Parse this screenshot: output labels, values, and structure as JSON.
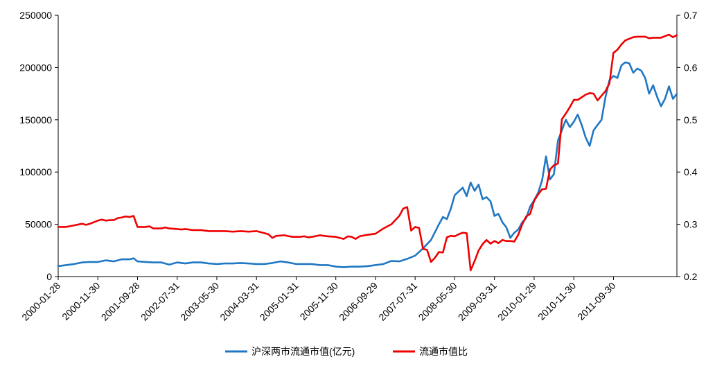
{
  "chart_data": {
    "type": "line",
    "title": "",
    "xlabel": "",
    "ylabel": "",
    "grid": false,
    "legend_position": "bottom",
    "x_tick_labels": [
      "2000-01-28",
      "2000-11-30",
      "2001-09-28",
      "2002-07-31",
      "2003-05-30",
      "2004-03-31",
      "2005-01-31",
      "2005-11-30",
      "2006-09-29",
      "2007-07-31",
      "2008-05-30",
      "2009-03-31",
      "2010-01-29",
      "2010-11-30",
      "2011-09-30"
    ],
    "y_left": {
      "min": 0,
      "max": 250000,
      "ticks": [
        0,
        50000,
        100000,
        150000,
        200000,
        250000
      ]
    },
    "y_right": {
      "min": 0.2,
      "max": 0.7,
      "ticks": [
        "0.2",
        "0.3",
        "0.4",
        "0.5",
        "0.6",
        "0.7"
      ]
    },
    "x_range_months": [
      0,
      143
    ],
    "series": [
      {
        "name": "沪深两市流通市值(亿元)",
        "axis": "left",
        "color": "#1f77c4",
        "points": [
          [
            0,
            10000
          ],
          [
            2,
            11000
          ],
          [
            4,
            12000
          ],
          [
            6,
            13500
          ],
          [
            8,
            14000
          ],
          [
            10,
            14000
          ],
          [
            12,
            15500
          ],
          [
            14,
            14500
          ],
          [
            16,
            16500
          ],
          [
            18,
            16500
          ],
          [
            19,
            17500
          ],
          [
            20,
            14500
          ],
          [
            22,
            14000
          ],
          [
            24,
            13500
          ],
          [
            26,
            13500
          ],
          [
            28,
            11500
          ],
          [
            30,
            13500
          ],
          [
            32,
            12500
          ],
          [
            34,
            13500
          ],
          [
            36,
            13500
          ],
          [
            38,
            12500
          ],
          [
            40,
            12000
          ],
          [
            42,
            12500
          ],
          [
            44,
            12500
          ],
          [
            46,
            13000
          ],
          [
            48,
            12500
          ],
          [
            50,
            12000
          ],
          [
            52,
            12000
          ],
          [
            54,
            13000
          ],
          [
            56,
            14500
          ],
          [
            58,
            13500
          ],
          [
            60,
            12000
          ],
          [
            62,
            12000
          ],
          [
            64,
            12000
          ],
          [
            66,
            11000
          ],
          [
            68,
            11000
          ],
          [
            70,
            9500
          ],
          [
            72,
            9000
          ],
          [
            74,
            9500
          ],
          [
            76,
            9500
          ],
          [
            78,
            10000
          ],
          [
            80,
            11000
          ],
          [
            82,
            12000
          ],
          [
            84,
            15000
          ],
          [
            86,
            14500
          ],
          [
            88,
            17000
          ],
          [
            90,
            20000
          ],
          [
            92,
            27000
          ],
          [
            94,
            35000
          ],
          [
            96,
            50000
          ],
          [
            97,
            57000
          ],
          [
            98,
            55000
          ],
          [
            99,
            65000
          ],
          [
            100,
            78000
          ],
          [
            102,
            85000
          ],
          [
            103,
            77000
          ],
          [
            104,
            90000
          ],
          [
            105,
            82000
          ],
          [
            106,
            88000
          ],
          [
            107,
            74000
          ],
          [
            108,
            76000
          ],
          [
            109,
            72000
          ],
          [
            110,
            58000
          ],
          [
            111,
            60000
          ],
          [
            112,
            52000
          ],
          [
            113,
            47000
          ],
          [
            114,
            37000
          ],
          [
            115,
            42000
          ],
          [
            116,
            45000
          ],
          [
            117,
            52000
          ],
          [
            118,
            56000
          ],
          [
            119,
            67000
          ],
          [
            120,
            73000
          ],
          [
            121,
            80000
          ],
          [
            122,
            92000
          ],
          [
            123,
            115000
          ],
          [
            124,
            93000
          ],
          [
            125,
            98000
          ],
          [
            126,
            130000
          ],
          [
            128,
            150000
          ],
          [
            129,
            143000
          ],
          [
            130,
            148000
          ],
          [
            131,
            155000
          ],
          [
            132,
            145000
          ],
          [
            133,
            133000
          ],
          [
            134,
            125000
          ],
          [
            135,
            140000
          ],
          [
            137,
            150000
          ],
          [
            138,
            172000
          ],
          [
            139,
            188000
          ],
          [
            140,
            192000
          ],
          [
            141,
            190000
          ],
          [
            142,
            202000
          ],
          [
            143,
            205000
          ],
          [
            144,
            204000
          ],
          [
            145,
            195000
          ],
          [
            146,
            199000
          ],
          [
            147,
            197000
          ],
          [
            148,
            190000
          ],
          [
            149,
            175000
          ],
          [
            150,
            183000
          ],
          [
            151,
            172000
          ],
          [
            152,
            163000
          ],
          [
            153,
            170000
          ],
          [
            154,
            182000
          ],
          [
            155,
            170000
          ],
          [
            156,
            175000
          ]
        ]
      },
      {
        "name": "流通市值比",
        "axis": "right",
        "color": "#ee0000",
        "points": [
          [
            0,
            0.295
          ],
          [
            2,
            0.295
          ],
          [
            4,
            0.298
          ],
          [
            6,
            0.301
          ],
          [
            7,
            0.299
          ],
          [
            8,
            0.301
          ],
          [
            10,
            0.307
          ],
          [
            11,
            0.309
          ],
          [
            12,
            0.307
          ],
          [
            13,
            0.308
          ],
          [
            14,
            0.308
          ],
          [
            15,
            0.312
          ],
          [
            16,
            0.313
          ],
          [
            17,
            0.315
          ],
          [
            18,
            0.314
          ],
          [
            19,
            0.316
          ],
          [
            20,
            0.295
          ],
          [
            22,
            0.295
          ],
          [
            23,
            0.296
          ],
          [
            24,
            0.292
          ],
          [
            26,
            0.292
          ],
          [
            27,
            0.294
          ],
          [
            28,
            0.292
          ],
          [
            30,
            0.291
          ],
          [
            31,
            0.29
          ],
          [
            32,
            0.291
          ],
          [
            34,
            0.289
          ],
          [
            36,
            0.289
          ],
          [
            38,
            0.287
          ],
          [
            40,
            0.287
          ],
          [
            42,
            0.287
          ],
          [
            44,
            0.286
          ],
          [
            46,
            0.287
          ],
          [
            48,
            0.286
          ],
          [
            50,
            0.287
          ],
          [
            52,
            0.283
          ],
          [
            53,
            0.281
          ],
          [
            54,
            0.274
          ],
          [
            55,
            0.278
          ],
          [
            57,
            0.279
          ],
          [
            59,
            0.276
          ],
          [
            61,
            0.276
          ],
          [
            62,
            0.277
          ],
          [
            63,
            0.275
          ],
          [
            64,
            0.276
          ],
          [
            66,
            0.279
          ],
          [
            68,
            0.277
          ],
          [
            70,
            0.276
          ],
          [
            72,
            0.272
          ],
          [
            73,
            0.277
          ],
          [
            74,
            0.276
          ],
          [
            75,
            0.272
          ],
          [
            76,
            0.277
          ],
          [
            78,
            0.28
          ],
          [
            80,
            0.282
          ],
          [
            82,
            0.292
          ],
          [
            84,
            0.3
          ],
          [
            86,
            0.316
          ],
          [
            87,
            0.33
          ],
          [
            88,
            0.333
          ],
          [
            89,
            0.288
          ],
          [
            90,
            0.295
          ],
          [
            91,
            0.293
          ],
          [
            92,
            0.253
          ],
          [
            93,
            0.251
          ],
          [
            94,
            0.228
          ],
          [
            95,
            0.236
          ],
          [
            96,
            0.247
          ],
          [
            97,
            0.246
          ],
          [
            98,
            0.275
          ],
          [
            99,
            0.278
          ],
          [
            100,
            0.277
          ],
          [
            101,
            0.281
          ],
          [
            102,
            0.284
          ],
          [
            103,
            0.283
          ],
          [
            104,
            0.212
          ],
          [
            105,
            0.23
          ],
          [
            106,
            0.25
          ],
          [
            107,
            0.262
          ],
          [
            108,
            0.27
          ],
          [
            109,
            0.263
          ],
          [
            110,
            0.268
          ],
          [
            111,
            0.264
          ],
          [
            112,
            0.27
          ],
          [
            113,
            0.268
          ],
          [
            114,
            0.268
          ],
          [
            115,
            0.267
          ],
          [
            116,
            0.28
          ],
          [
            117,
            0.3
          ],
          [
            118,
            0.315
          ],
          [
            119,
            0.32
          ],
          [
            120,
            0.345
          ],
          [
            121,
            0.357
          ],
          [
            122,
            0.367
          ],
          [
            123,
            0.368
          ],
          [
            124,
            0.405
          ],
          [
            125,
            0.413
          ],
          [
            126,
            0.416
          ],
          [
            127,
            0.501
          ],
          [
            128,
            0.512
          ],
          [
            129,
            0.524
          ],
          [
            130,
            0.538
          ],
          [
            131,
            0.538
          ],
          [
            132,
            0.543
          ],
          [
            133,
            0.548
          ],
          [
            134,
            0.551
          ],
          [
            135,
            0.55
          ],
          [
            136,
            0.537
          ],
          [
            137,
            0.546
          ],
          [
            138,
            0.555
          ],
          [
            139,
            0.57
          ],
          [
            140,
            0.628
          ],
          [
            141,
            0.634
          ],
          [
            142,
            0.644
          ],
          [
            143,
            0.652
          ],
          [
            144,
            0.655
          ],
          [
            145,
            0.658
          ],
          [
            146,
            0.659
          ],
          [
            148,
            0.659
          ],
          [
            149,
            0.656
          ],
          [
            150,
            0.657
          ],
          [
            152,
            0.657
          ],
          [
            153,
            0.66
          ],
          [
            154,
            0.663
          ],
          [
            155,
            0.658
          ],
          [
            156,
            0.662
          ]
        ]
      }
    ]
  }
}
